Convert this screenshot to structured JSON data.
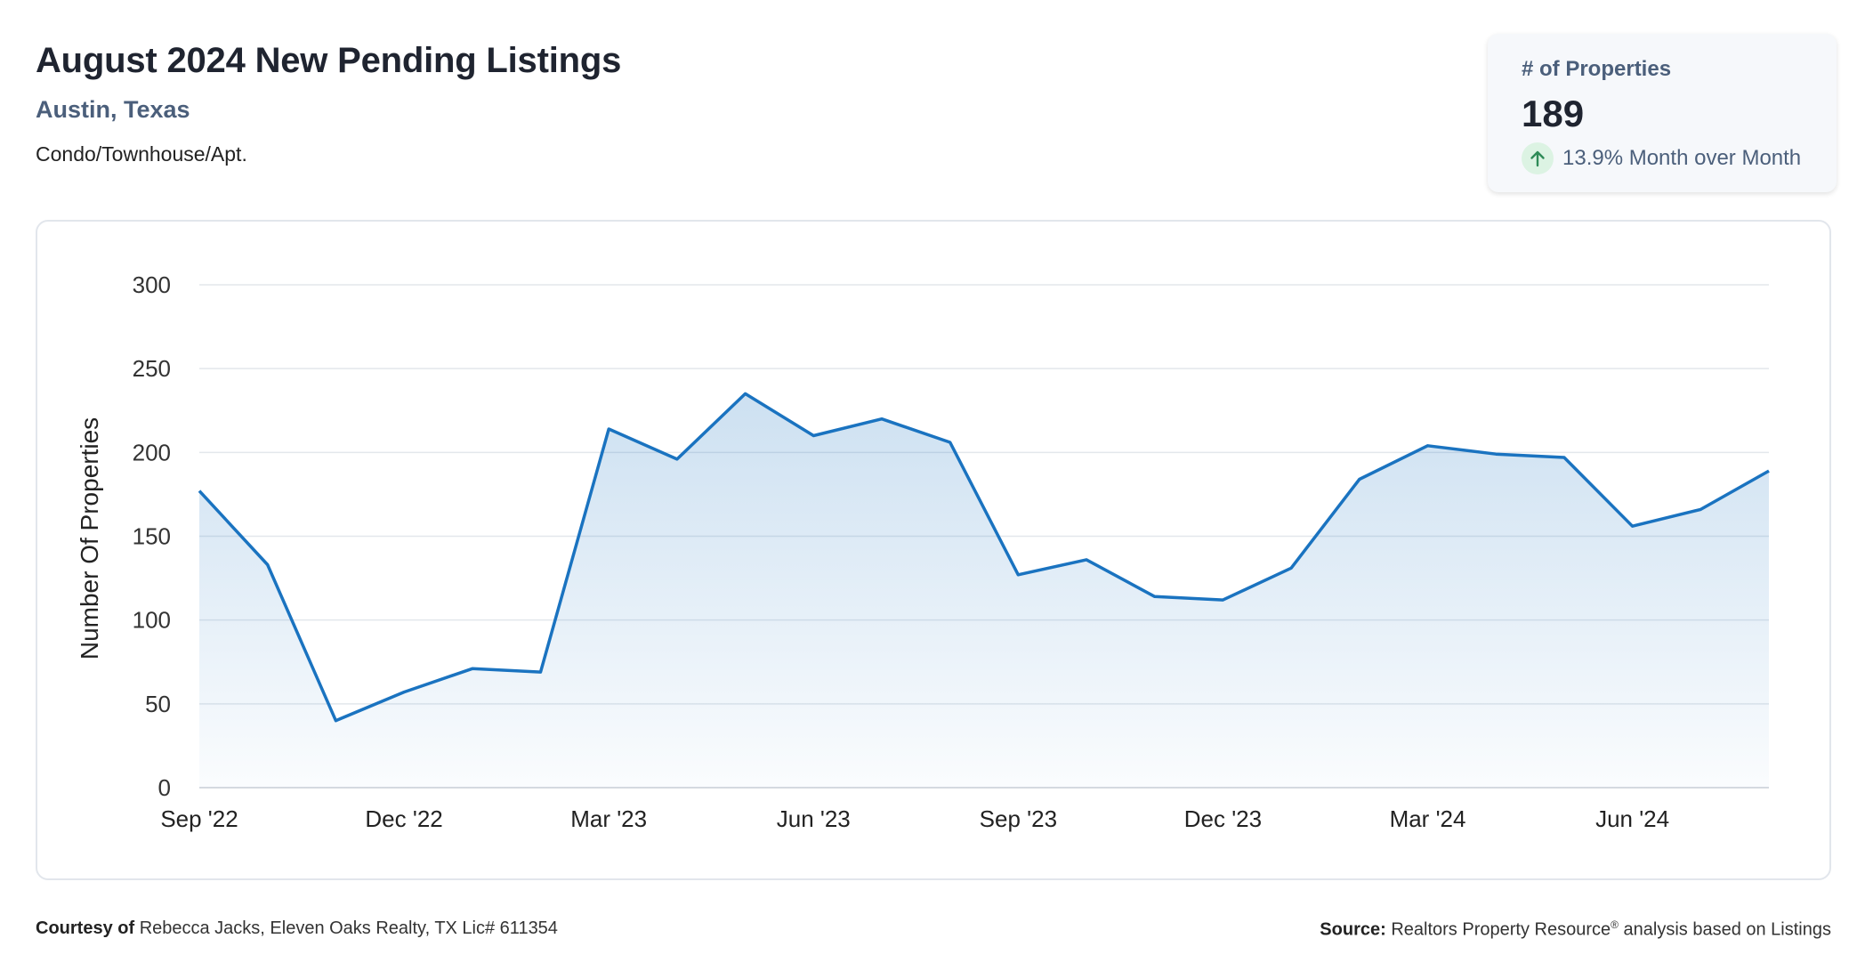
{
  "header": {
    "title": "August 2024 New Pending Listings",
    "location": "Austin, Texas",
    "property_type": "Condo/Townhouse/Apt."
  },
  "kpi": {
    "label": "# of Properties",
    "value": "189",
    "change": "13.9% Month over Month",
    "direction_icon": "arrow-up-icon",
    "icon_color": "#2e8b57"
  },
  "chart_data": {
    "type": "area",
    "title": "",
    "xlabel": "",
    "ylabel": "Number Of Properties",
    "ylim": [
      0,
      300
    ],
    "yticks": [
      0,
      50,
      100,
      150,
      200,
      250,
      300
    ],
    "x": [
      "Sep '22",
      "Oct '22",
      "Nov '22",
      "Dec '22",
      "Jan '23",
      "Feb '23",
      "Mar '23",
      "Apr '23",
      "May '23",
      "Jun '23",
      "Jul '23",
      "Aug '23",
      "Sep '23",
      "Oct '23",
      "Nov '23",
      "Dec '23",
      "Jan '24",
      "Feb '24",
      "Mar '24",
      "Apr '24",
      "May '24",
      "Jun '24",
      "Jul '24",
      "Aug '24"
    ],
    "xtick_labels": [
      "Sep '22",
      "Dec '22",
      "Mar '23",
      "Jun '23",
      "Sep '23",
      "Dec '23",
      "Mar '24",
      "Jun '24"
    ],
    "series": [
      {
        "values": [
          177,
          133,
          40,
          57,
          71,
          69,
          214,
          196,
          235,
          210,
          220,
          206,
          127,
          136,
          114,
          112,
          131,
          184,
          204,
          199,
          197,
          156,
          166,
          189
        ],
        "color": "#1a73c0"
      }
    ],
    "grid": true,
    "legend": "none"
  },
  "footer": {
    "courtesy_label": "Courtesy of",
    "courtesy_text": "Rebecca Jacks, Eleven Oaks Realty, TX Lic# 611354",
    "source_label": "Source:",
    "source_text_a": "Realtors Property Resource",
    "source_sup": "®",
    "source_text_b": "analysis based on Listings"
  }
}
